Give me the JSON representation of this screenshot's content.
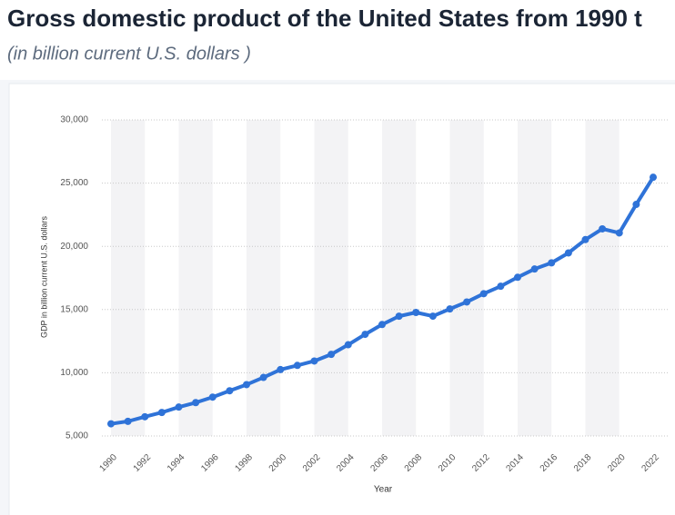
{
  "chart_data": {
    "type": "line",
    "title": "Gross domestic product of the United States from 1990 t",
    "subtitle": "(in billion current U.S. dollars )",
    "x_label": "Year",
    "y_label": "GDP in billion current U.S. dollars",
    "x": [
      1990,
      1991,
      1992,
      1993,
      1994,
      1995,
      1996,
      1997,
      1998,
      1999,
      2000,
      2001,
      2002,
      2003,
      2004,
      2005,
      2006,
      2007,
      2008,
      2009,
      2010,
      2011,
      2012,
      2013,
      2014,
      2015,
      2016,
      2017,
      2018,
      2019,
      2020,
      2021,
      2022
    ],
    "series": [
      {
        "name": "GDP",
        "color": "#2f73d8",
        "values": [
          5963,
          6158,
          6520,
          6859,
          7287,
          7639,
          8073,
          8578,
          9063,
          9631,
          10251,
          10582,
          10929,
          11457,
          12217,
          13039,
          13816,
          14474,
          14770,
          14478,
          15049,
          15600,
          16254,
          16843,
          17551,
          18206,
          18695,
          19477,
          20533,
          21381,
          21060,
          23315,
          25463
        ]
      }
    ],
    "xlim": [
      1990,
      2022
    ],
    "xticks": [
      1990,
      1992,
      1994,
      1996,
      1998,
      2000,
      2002,
      2004,
      2006,
      2008,
      2010,
      2012,
      2014,
      2016,
      2018,
      2020,
      2022
    ],
    "ylim": [
      5000,
      30000
    ],
    "yticks": [
      {
        "value": 5000,
        "label": "5,000"
      },
      {
        "value": 10000,
        "label": "10,000"
      },
      {
        "value": 15000,
        "label": "15,000"
      },
      {
        "value": 20000,
        "label": "20,000"
      },
      {
        "value": 25000,
        "label": "25,000"
      },
      {
        "value": 30000,
        "label": "30,000"
      }
    ],
    "grid": true
  }
}
